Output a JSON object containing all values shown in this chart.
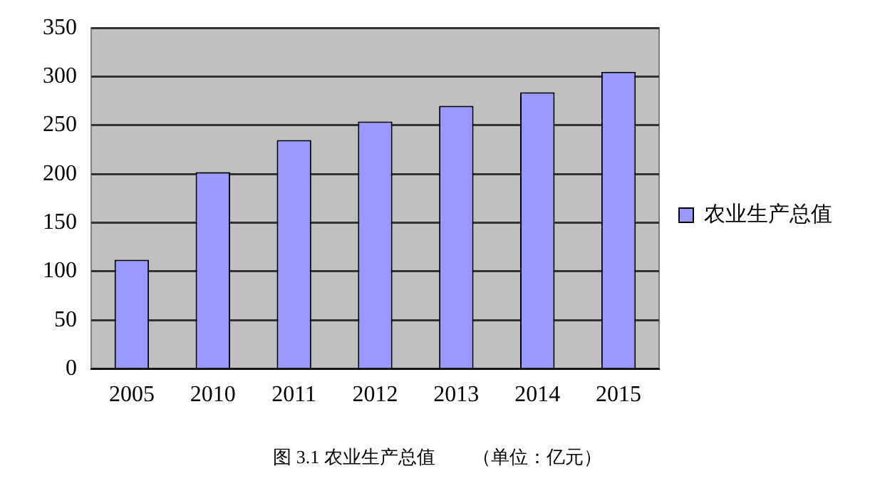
{
  "chart_data": {
    "type": "bar",
    "categories": [
      "2005",
      "2010",
      "2011",
      "2012",
      "2013",
      "2014",
      "2015"
    ],
    "series": [
      {
        "name": "农业生产总值",
        "color": "#9999ff",
        "values": [
          112,
          202,
          235,
          254,
          270,
          284,
          305
        ]
      }
    ],
    "ylim": [
      0,
      350
    ],
    "yticks": [
      0,
      50,
      100,
      150,
      200,
      250,
      300,
      350
    ],
    "grid": "y",
    "legend": "right",
    "annotations": [
      "图 3.1 农业生产总值　　（单位：亿元）"
    ]
  }
}
